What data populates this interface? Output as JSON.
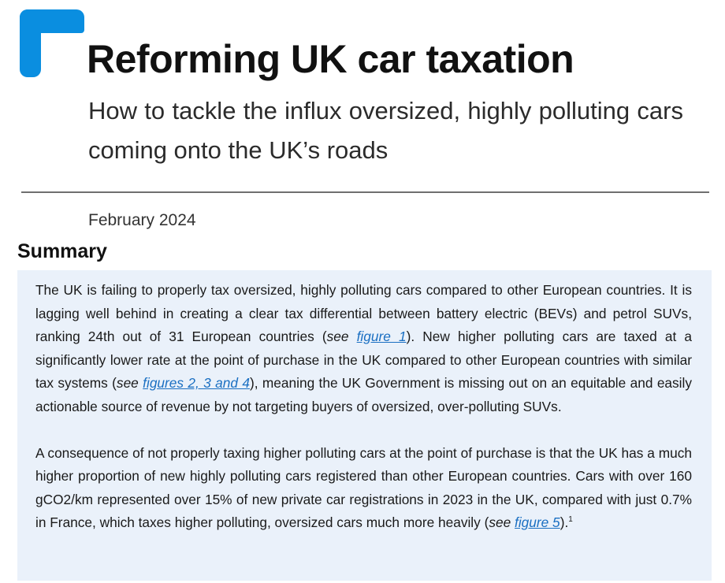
{
  "header": {
    "title": "Reforming UK car taxation",
    "subtitle": "How to tackle the influx oversized, highly polluting cars coming onto the UK’s roads",
    "date": "February 2024",
    "accent_color": "#0a8ee0"
  },
  "summary": {
    "heading": "Summary",
    "background_color": "#eaf1fa",
    "link_color": "#1a6fc2",
    "paragraph1": {
      "part1": "The UK is failing to properly tax oversized, highly polluting cars compared to other European countries. It is lagging well behind in creating a clear tax differential between battery electric (BEVs) and petrol SUVs, ranking 24th out of 31 European countries (",
      "see1": "see",
      "link1": "figure 1",
      "part2": "). New higher polluting cars are taxed at a significantly lower rate at the point of purchase in the UK compared to other European countries with similar tax systems (",
      "see2": "see",
      "link2": "figures 2, 3 and 4",
      "part3": "), meaning the UK Government is missing out on an equitable and easily actionable source of revenue by not targeting buyers of oversized, over-polluting SUVs."
    },
    "paragraph2": {
      "part1": "A consequence of not properly taxing higher polluting cars at the point of purchase is that the UK has a much higher proportion of new highly polluting cars registered than other European countries. Cars with over 160 gCO2/km represented over 15% of new private car registrations in 2023 in the UK, compared with just 0.7% in France, which taxes higher polluting, oversized cars much more heavily (",
      "see": "see",
      "link": "figure 5",
      "part2": ").",
      "footnote": "1"
    }
  }
}
